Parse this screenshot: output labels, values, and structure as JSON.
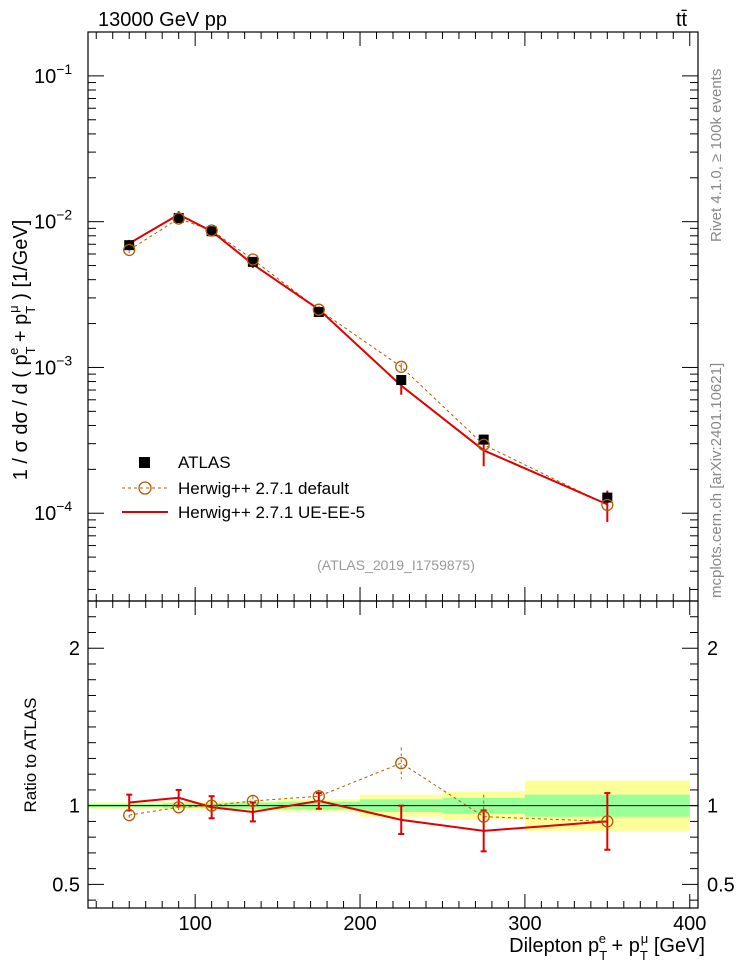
{
  "header": {
    "left": "13000 GeV pp",
    "right": "tt̄"
  },
  "side_texts": {
    "top": "Rivet 4.1.0, ≥ 100k events",
    "bottom": "mcplots.cern.ch [arXiv:2401.10621]"
  },
  "chart_data": {
    "type": "line",
    "analysis_id": "(ATLAS_2019_I1759875)",
    "xlabel": "Dilepton p_T^e + p_T^μ [GeV]",
    "ylabel": "1 / σ  dσ / d ( p_T^e + p_T^μ ) [1/GeV]",
    "xlim": [
      35,
      405
    ],
    "ylim": [
      2.5e-05,
      0.2
    ],
    "yscale": "log",
    "x_ticks": [
      100,
      200,
      300,
      400
    ],
    "y_ticks": [
      {
        "value": 0.1,
        "exp": "−1"
      },
      {
        "value": 0.01,
        "exp": "−2"
      },
      {
        "value": 0.001,
        "exp": "−3"
      },
      {
        "value": 0.0001,
        "exp": "−4"
      }
    ],
    "x": [
      60,
      90,
      110,
      135,
      175,
      225,
      275,
      350
    ],
    "bin_edges": [
      35,
      80,
      100,
      120,
      150,
      200,
      250,
      300,
      400
    ],
    "series": [
      {
        "name": "ATLAS",
        "marker": "square",
        "color": "#000000",
        "values": [
          0.0069,
          0.0106,
          0.0086,
          0.0053,
          0.0024,
          0.00082,
          0.00032,
          0.000128
        ]
      },
      {
        "name": "Herwig++ 2.7.1 default",
        "marker": "open-circle",
        "color": "#b35900",
        "values": [
          0.0064,
          0.0105,
          0.0087,
          0.0055,
          0.00249,
          0.00101,
          0.000295,
          0.000114
        ],
        "errors": [
          0.0003,
          0.0004,
          0.0003,
          0.0002,
          0.0001,
          6e-05,
          4e-05,
          2e-05
        ]
      },
      {
        "name": "Herwig++ 2.7.1 UE-EE-5",
        "marker": "line",
        "color": "#e00000",
        "values": [
          0.0071,
          0.0112,
          0.0086,
          0.0051,
          0.0025,
          0.00075,
          0.00027,
          0.000115
        ],
        "errors": [
          0.0004,
          0.0006,
          0.0004,
          0.0003,
          0.00012,
          0.0001,
          6e-05,
          2.8e-05
        ]
      }
    ],
    "ratio": {
      "ylabel": "Ratio to ATLAS",
      "ylim": [
        0.35,
        2.3
      ],
      "y_ticks": [
        0.5,
        1,
        2
      ],
      "band_inner": [
        0.01,
        0.015,
        0.015,
        0.02,
        0.025,
        0.04,
        0.05,
        0.07
      ],
      "band_outer": [
        0.02,
        0.025,
        0.025,
        0.03,
        0.04,
        0.07,
        0.09,
        0.16
      ],
      "herwig_default": [
        0.94,
        0.99,
        1.0,
        1.03,
        1.06,
        1.27,
        0.93,
        0.9
      ],
      "herwig_default_err": [
        0.04,
        0.04,
        0.03,
        0.03,
        0.04,
        0.1,
        0.14,
        0.18
      ],
      "ue_ee5": [
        1.02,
        1.05,
        0.99,
        0.96,
        1.03,
        0.91,
        0.84,
        0.9
      ],
      "ue_ee5_err": [
        0.05,
        0.05,
        0.07,
        0.06,
        0.05,
        0.09,
        0.13,
        0.18
      ]
    }
  }
}
